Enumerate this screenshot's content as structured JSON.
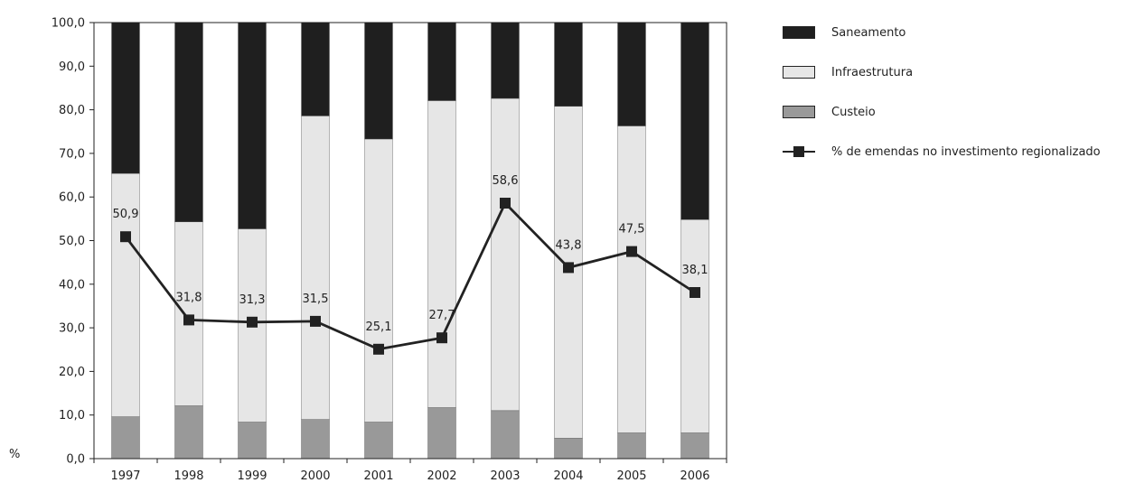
{
  "chart_data": {
    "type": "bar",
    "stacked": true,
    "categories": [
      "1997",
      "1998",
      "1999",
      "2000",
      "2001",
      "2002",
      "2003",
      "2004",
      "2005",
      "2006"
    ],
    "ylim": [
      0,
      100
    ],
    "yticks": [
      "0,0",
      "10,0",
      "20,0",
      "30,0",
      "40,0",
      "50,0",
      "60,0",
      "70,0",
      "80,0",
      "90,0",
      "100,0"
    ],
    "ylabel": "%",
    "series": [
      {
        "name": "Custeio",
        "kind": "bar",
        "color": "#999999",
        "values": [
          9.6,
          12.1,
          8.4,
          9.0,
          8.4,
          11.7,
          11.0,
          4.7,
          5.9,
          5.9
        ]
      },
      {
        "name": "Infraestrutura",
        "kind": "bar",
        "color": "#e6e6e6",
        "values": [
          55.8,
          42.2,
          44.3,
          69.6,
          64.9,
          70.4,
          71.6,
          76.1,
          70.4,
          48.9
        ]
      },
      {
        "name": "Saneamento",
        "kind": "bar",
        "color": "#1f1f1f",
        "values": [
          34.6,
          45.7,
          47.3,
          21.4,
          26.7,
          17.9,
          17.4,
          19.2,
          23.7,
          45.2
        ]
      },
      {
        "name": "% de emendas no investimento regionalizado",
        "kind": "line",
        "color": "#222222",
        "values": [
          50.9,
          31.8,
          31.3,
          31.5,
          25.1,
          27.7,
          58.6,
          43.8,
          47.5,
          38.1
        ],
        "labels": [
          "50,9",
          "31,8",
          "31,3",
          "31,5",
          "25,1",
          "27,7",
          "58,6",
          "43,8",
          "47,5",
          "38,1"
        ]
      }
    ],
    "legend_position": "right",
    "grid": false
  },
  "legend": {
    "items": [
      {
        "label": "Saneamento",
        "type": "swatch",
        "color": "#1f1f1f"
      },
      {
        "label": "Infraestrutura",
        "type": "swatch",
        "color": "#e6e6e6"
      },
      {
        "label": "Custeio",
        "type": "swatch",
        "color": "#999999"
      },
      {
        "label": "% de emendas no investimento regionalizado",
        "type": "line",
        "color": "#222222"
      }
    ]
  },
  "unit_label": "%"
}
